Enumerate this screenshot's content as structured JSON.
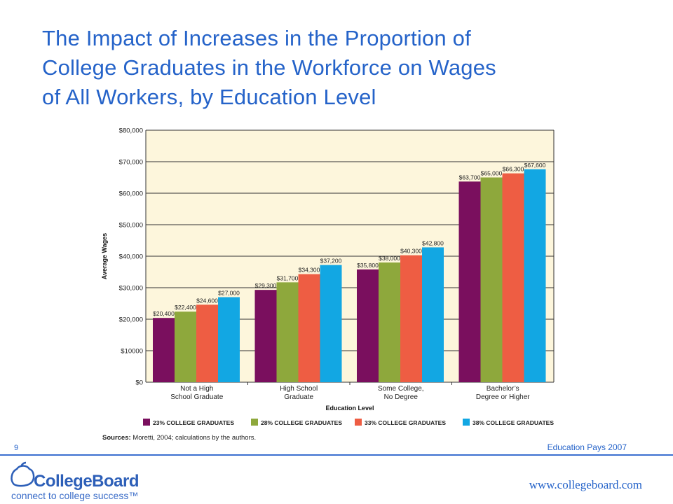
{
  "title_lines": [
    "The Impact of Increases in the Proportion of",
    "College Graduates in the Workforce on Wages",
    "of All Workers, by Education Level"
  ],
  "chart_data": {
    "type": "bar",
    "title": "",
    "xlabel": "Education Level",
    "ylabel": "Average Wages",
    "ylim": [
      0,
      80000
    ],
    "y_ticks": [
      0,
      10000,
      20000,
      30000,
      40000,
      50000,
      60000,
      70000,
      80000
    ],
    "y_tick_labels": [
      "$0",
      "$10000",
      "$20,000",
      "$30,000",
      "$40,000",
      "$50,000",
      "$60,000",
      "$70,000",
      "$80,000"
    ],
    "categories": [
      [
        "Not a High",
        "School Graduate"
      ],
      [
        "High School",
        "Graduate"
      ],
      [
        "Some College,",
        "No Degree"
      ],
      [
        "Bachelor’s",
        "Degree or Higher"
      ]
    ],
    "series": [
      {
        "name": "23% COLLEGE GRADUATES",
        "color": "#7a0f5e",
        "values": [
          20400,
          29300,
          35800,
          63700
        ],
        "labels": [
          "$20,400",
          "$29,300",
          "$35,800",
          "$63,700"
        ]
      },
      {
        "name": "28% COLLEGE GRADUATES",
        "color": "#8ea83c",
        "values": [
          22400,
          31700,
          38000,
          65000
        ],
        "labels": [
          "$22,400",
          "$31,700",
          "$38,000",
          "$65,000"
        ]
      },
      {
        "name": "33% COLLEGE GRADUATES",
        "color": "#ee5d43",
        "values": [
          24600,
          34300,
          40300,
          66300
        ],
        "labels": [
          "$24,600",
          "$34,300",
          "$40,300",
          "$66,300"
        ]
      },
      {
        "name": "38% COLLEGE GRADUATES",
        "color": "#12a7e3",
        "values": [
          27000,
          37200,
          42800,
          67600
        ],
        "labels": [
          "$27,000",
          "$37,200",
          "$42,800",
          "$67,600"
        ]
      }
    ],
    "background_color": "#fdf6dc",
    "grid": true,
    "legend_position": "bottom"
  },
  "source": {
    "label": "Sources:",
    "text": "Moretti, 2004; calculations by the authors."
  },
  "footer": {
    "slide_number": "9",
    "publication": "Education Pays 2007",
    "logo_text": "CollegeBoard",
    "logo_tagline": "connect to college success™",
    "website": "www.collegeboard.com"
  },
  "colors": {
    "title": "#2563c9",
    "footer_rule": "#3b6fd0",
    "logo": "#2d5fb8"
  }
}
